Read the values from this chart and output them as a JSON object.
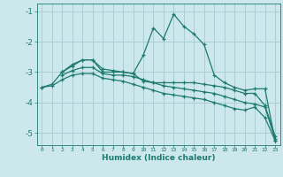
{
  "xlabel": "Humidex (Indice chaleur)",
  "background_color": "#cce8ec",
  "grid_color": "#aacdd4",
  "line_color": "#1e7a70",
  "xlim": [
    -0.5,
    23.5
  ],
  "ylim": [
    -5.4,
    -0.75
  ],
  "yticks": [
    -1,
    -2,
    -3,
    -4,
    -5
  ],
  "xticks": [
    0,
    1,
    2,
    3,
    4,
    5,
    6,
    7,
    8,
    9,
    10,
    11,
    12,
    13,
    14,
    15,
    16,
    17,
    18,
    19,
    20,
    21,
    22,
    23
  ],
  "lines": [
    {
      "x": [
        0,
        1,
        2,
        3,
        4,
        5,
        6,
        7,
        8,
        9,
        10,
        11,
        12,
        13,
        14,
        15,
        16,
        17,
        18,
        19,
        20,
        21,
        22,
        23
      ],
      "y": [
        -3.5,
        -3.4,
        -3.0,
        -2.75,
        -2.6,
        -2.6,
        -3.0,
        -3.0,
        -3.0,
        -3.05,
        -2.45,
        -1.55,
        -1.9,
        -1.1,
        -1.5,
        -1.75,
        -2.1,
        -3.1,
        -3.35,
        -3.5,
        -3.6,
        -3.55,
        -3.55,
        -5.25
      ]
    },
    {
      "x": [
        2,
        3,
        4,
        5,
        6,
        7,
        8,
        9,
        10,
        11,
        12,
        13,
        14,
        15,
        16,
        17,
        18,
        19,
        20,
        21,
        22,
        23
      ],
      "y": [
        -3.0,
        -2.8,
        -2.6,
        -2.6,
        -2.9,
        -2.95,
        -3.0,
        -3.05,
        -3.3,
        -3.35,
        -3.35,
        -3.35,
        -3.35,
        -3.35,
        -3.4,
        -3.45,
        -3.5,
        -3.6,
        -3.7,
        -3.7,
        -4.1,
        -5.1
      ]
    },
    {
      "x": [
        2,
        3,
        4,
        5,
        6,
        7,
        8,
        9,
        10,
        11,
        12,
        13,
        14,
        15,
        16,
        17,
        18,
        19,
        20,
        21,
        22,
        23
      ],
      "y": [
        -3.1,
        -2.95,
        -2.85,
        -2.85,
        -3.05,
        -3.1,
        -3.1,
        -3.15,
        -3.25,
        -3.35,
        -3.45,
        -3.5,
        -3.55,
        -3.6,
        -3.65,
        -3.7,
        -3.8,
        -3.9,
        -4.0,
        -4.05,
        -4.15,
        -5.2
      ]
    },
    {
      "x": [
        0,
        1,
        2,
        3,
        4,
        5,
        6,
        7,
        8,
        9,
        10,
        11,
        12,
        13,
        14,
        15,
        16,
        17,
        18,
        19,
        20,
        21,
        22,
        23
      ],
      "y": [
        -3.5,
        -3.45,
        -3.25,
        -3.1,
        -3.05,
        -3.05,
        -3.2,
        -3.25,
        -3.3,
        -3.4,
        -3.5,
        -3.6,
        -3.7,
        -3.75,
        -3.8,
        -3.85,
        -3.9,
        -4.0,
        -4.1,
        -4.2,
        -4.25,
        -4.15,
        -4.5,
        -5.25
      ]
    }
  ]
}
